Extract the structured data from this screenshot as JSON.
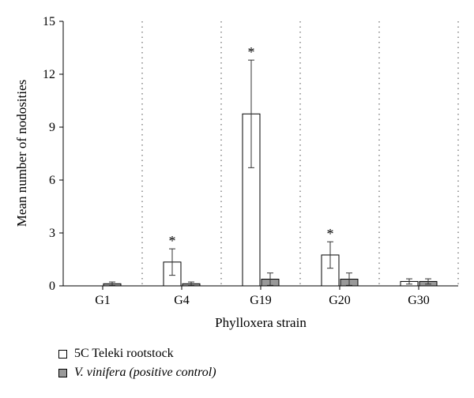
{
  "chart_data": {
    "type": "bar",
    "title": "",
    "xlabel": "Phylloxera strain",
    "ylabel": "Mean number of nodosities",
    "categories": [
      "G1",
      "G4",
      "G19",
      "G20",
      "G30"
    ],
    "ylim": [
      0,
      15
    ],
    "yticks": [
      0,
      3,
      6,
      9,
      12,
      15
    ],
    "grid": "vertical dotted separators between groups",
    "legend_position": "bottom-left",
    "series": [
      {
        "name": "5C Teleki rootstock",
        "color": "#ffffff",
        "values": [
          0,
          1.35,
          9.75,
          1.75,
          0.25
        ],
        "errors": [
          0,
          0.75,
          3.05,
          0.75,
          0.15
        ],
        "significant": [
          false,
          true,
          true,
          true,
          false
        ]
      },
      {
        "name": "V. vinifera (positive control)",
        "color": "#999999",
        "values": [
          0.12,
          0.12,
          0.38,
          0.38,
          0.25
        ],
        "errors": [
          0.1,
          0.1,
          0.35,
          0.35,
          0.15
        ],
        "significant": [
          false,
          false,
          false,
          false,
          false
        ]
      }
    ],
    "significance_marker": "*"
  },
  "legend": {
    "item1_label": "5C Teleki rootstock",
    "item2_label": "V. vinifera (positive control)"
  }
}
